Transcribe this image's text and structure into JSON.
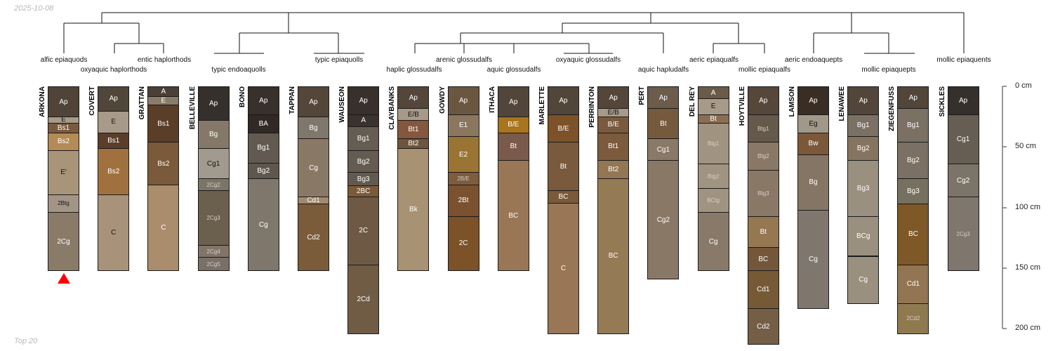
{
  "date": "2025-10-08",
  "footer": "Top 20",
  "axis": {
    "unit": "cm",
    "ticks": [
      "0 cm",
      "50 cm",
      "100 cm",
      "150 cm",
      "200 cm"
    ],
    "tick_values": [
      0,
      50,
      100,
      150,
      200
    ],
    "max_depth": 200
  },
  "taxa": [
    {
      "label": "alfic epiaquods",
      "row": 1
    },
    {
      "label": "oxyaquic haplorthods",
      "row": 2
    },
    {
      "label": "entic haplorthods",
      "row": 1
    },
    {
      "label": "typic endoaquolls",
      "row": 2
    },
    {
      "label": "typic epiaquolls",
      "row": 1
    },
    {
      "label": "haplic glossudalfs",
      "row": 2
    },
    {
      "label": "arenic glossudalfs",
      "row": 1
    },
    {
      "label": "aquic glossudalfs",
      "row": 2
    },
    {
      "label": "oxyaquic glossudalfs",
      "row": 1
    },
    {
      "label": "aquic hapludalfs",
      "row": 2
    },
    {
      "label": "aeric epiaqualfs",
      "row": 1
    },
    {
      "label": "mollic epiaqualfs",
      "row": 2
    },
    {
      "label": "aeric endoaquepts",
      "row": 1
    },
    {
      "label": "mollic epiaquepts",
      "row": 2
    },
    {
      "label": "mollic epiaquents",
      "row": 1
    }
  ],
  "marked_profile": "ARKONA",
  "marker_color": "#ff0000",
  "profiles": [
    {
      "name": "ARKONA",
      "horizons": [
        {
          "name": "Ap",
          "top": 0,
          "bottom": 25,
          "color": "#4f4437"
        },
        {
          "name": "E",
          "top": 25,
          "bottom": 30,
          "color": "#a89a88"
        },
        {
          "name": "Bs1",
          "top": 30,
          "bottom": 38,
          "color": "#7a5a3e"
        },
        {
          "name": "Bs2",
          "top": 38,
          "bottom": 53,
          "color": "#b48a55"
        },
        {
          "name": "E'",
          "top": 53,
          "bottom": 89,
          "color": "#a89478"
        },
        {
          "name": "2Btg",
          "top": 89,
          "bottom": 104,
          "color": "#a39585"
        },
        {
          "name": "2Cg",
          "top": 104,
          "bottom": 152,
          "color": "#8a7b69"
        }
      ]
    },
    {
      "name": "COVERT",
      "horizons": [
        {
          "name": "Ap",
          "top": 0,
          "bottom": 20,
          "color": "#51463a"
        },
        {
          "name": "E",
          "top": 20,
          "bottom": 38,
          "color": "#a89a88"
        },
        {
          "name": "Bs1",
          "top": 38,
          "bottom": 51,
          "color": "#5c3d2b"
        },
        {
          "name": "Bs2",
          "top": 51,
          "bottom": 89,
          "color": "#a0713f"
        },
        {
          "name": "C",
          "top": 89,
          "bottom": 152,
          "color": "#a8937a"
        }
      ]
    },
    {
      "name": "GRATTAN",
      "horizons": [
        {
          "name": "A",
          "top": 0,
          "bottom": 8,
          "color": "#4a4038"
        },
        {
          "name": "E",
          "top": 8,
          "bottom": 15,
          "color": "#8b7b69"
        },
        {
          "name": "Bs1",
          "top": 15,
          "bottom": 46,
          "color": "#5a3e28"
        },
        {
          "name": "Bs2",
          "top": 46,
          "bottom": 81,
          "color": "#7a5a3a"
        },
        {
          "name": "C",
          "top": 81,
          "bottom": 152,
          "color": "#a98d6d"
        }
      ]
    },
    {
      "name": "BELLEVILLE",
      "horizons": [
        {
          "name": "Ap",
          "top": 0,
          "bottom": 28,
          "color": "#35302b"
        },
        {
          "name": "Bg",
          "top": 28,
          "bottom": 51,
          "color": "#857868"
        },
        {
          "name": "Cg1",
          "top": 51,
          "bottom": 76,
          "color": "#a29a8f"
        },
        {
          "name": "2Cg2",
          "top": 76,
          "bottom": 86,
          "color": "#7b7568"
        },
        {
          "name": "2Cg3",
          "top": 86,
          "bottom": 131,
          "color": "#6b5f4e"
        },
        {
          "name": "2Cg4",
          "top": 131,
          "bottom": 141,
          "color": "#807568"
        },
        {
          "name": "2Cg5",
          "top": 141,
          "bottom": 152,
          "color": "#7a7068"
        }
      ]
    },
    {
      "name": "BONO",
      "horizons": [
        {
          "name": "Ap",
          "top": 0,
          "bottom": 23,
          "color": "#38302a"
        },
        {
          "name": "BA",
          "top": 23,
          "bottom": 38,
          "color": "#302925"
        },
        {
          "name": "Bg1",
          "top": 38,
          "bottom": 63,
          "color": "#625a50"
        },
        {
          "name": "Bg2",
          "top": 63,
          "bottom": 76,
          "color": "#5f574d"
        },
        {
          "name": "Cg",
          "top": 76,
          "bottom": 152,
          "color": "#7f776c"
        }
      ]
    },
    {
      "name": "TAPPAN",
      "horizons": [
        {
          "name": "Ap",
          "top": 0,
          "bottom": 25,
          "color": "#55463a"
        },
        {
          "name": "Bg",
          "top": 25,
          "bottom": 43,
          "color": "#7f776c"
        },
        {
          "name": "Cg",
          "top": 43,
          "bottom": 91,
          "color": "#8a7866"
        },
        {
          "name": "Cd1",
          "top": 91,
          "bottom": 97,
          "color": "#a08a70"
        },
        {
          "name": "Cd2",
          "top": 97,
          "bottom": 152,
          "color": "#7a5c3a"
        }
      ]
    },
    {
      "name": "WAUSEON",
      "horizons": [
        {
          "name": "Ap",
          "top": 0,
          "bottom": 23,
          "color": "#38302a"
        },
        {
          "name": "A",
          "top": 23,
          "bottom": 33,
          "color": "#3a322c"
        },
        {
          "name": "Bg1",
          "top": 33,
          "bottom": 53,
          "color": "#655c52"
        },
        {
          "name": "Bg2",
          "top": 53,
          "bottom": 71,
          "color": "#645b51"
        },
        {
          "name": "Bg3",
          "top": 71,
          "bottom": 82,
          "color": "#625a50"
        },
        {
          "name": "2BC",
          "top": 82,
          "bottom": 91,
          "color": "#7a5a38"
        },
        {
          "name": "2C",
          "top": 91,
          "bottom": 147,
          "color": "#6e5a44"
        },
        {
          "name": "2Cd",
          "top": 147,
          "bottom": 204,
          "color": "#705c44"
        }
      ]
    },
    {
      "name": "CLAYBANKS",
      "horizons": [
        {
          "name": "Ap",
          "top": 0,
          "bottom": 18,
          "color": "#55463a"
        },
        {
          "name": "E/B",
          "top": 18,
          "bottom": 28,
          "color": "#a89a88"
        },
        {
          "name": "Bt1",
          "top": 28,
          "bottom": 43,
          "color": "#85573e"
        },
        {
          "name": "Bt2",
          "top": 43,
          "bottom": 51,
          "color": "#6e553d"
        },
        {
          "name": "Bk",
          "top": 51,
          "bottom": 152,
          "color": "#a89274"
        }
      ]
    },
    {
      "name": "GOWDY",
      "horizons": [
        {
          "name": "Ap",
          "top": 0,
          "bottom": 23,
          "color": "#6b5740"
        },
        {
          "name": "E1",
          "top": 23,
          "bottom": 41,
          "color": "#8b7760"
        },
        {
          "name": "E2",
          "top": 41,
          "bottom": 71,
          "color": "#9a7433"
        },
        {
          "name": "2B/E",
          "top": 71,
          "bottom": 81,
          "color": "#7e5c3e"
        },
        {
          "name": "2Bt",
          "top": 81,
          "bottom": 107,
          "color": "#7a5230"
        },
        {
          "name": "2C",
          "top": 107,
          "bottom": 152,
          "color": "#7c5228"
        }
      ]
    },
    {
      "name": "ITHACA",
      "horizons": [
        {
          "name": "Ap",
          "top": 0,
          "bottom": 25,
          "color": "#52463a"
        },
        {
          "name": "B/E",
          "top": 25,
          "bottom": 38,
          "color": "#a8741e"
        },
        {
          "name": "Bt",
          "top": 38,
          "bottom": 61,
          "color": "#7a5a4a"
        },
        {
          "name": "BC",
          "top": 61,
          "bottom": 152,
          "color": "#997656"
        }
      ]
    },
    {
      "name": "MARLETTE",
      "horizons": [
        {
          "name": "Ap",
          "top": 0,
          "bottom": 23,
          "color": "#52463a"
        },
        {
          "name": "B/E",
          "top": 23,
          "bottom": 46,
          "color": "#7e5228"
        },
        {
          "name": "Bt",
          "top": 46,
          "bottom": 86,
          "color": "#7a5a3c"
        },
        {
          "name": "BC",
          "top": 86,
          "bottom": 96,
          "color": "#7a5a3a"
        },
        {
          "name": "C",
          "top": 96,
          "bottom": 204,
          "color": "#997656"
        }
      ]
    },
    {
      "name": "PERRINTON",
      "horizons": [
        {
          "name": "Ap",
          "top": 0,
          "bottom": 18,
          "color": "#55463a"
        },
        {
          "name": "E/B",
          "top": 18,
          "bottom": 25,
          "color": "#a89a88"
        },
        {
          "name": "B/E",
          "top": 25,
          "bottom": 38,
          "color": "#7a5a3e"
        },
        {
          "name": "Bt1",
          "top": 38,
          "bottom": 61,
          "color": "#7c5a3e"
        },
        {
          "name": "Bt2",
          "top": 61,
          "bottom": 76,
          "color": "#937654"
        },
        {
          "name": "BC",
          "top": 76,
          "bottom": 204,
          "color": "#957a56"
        }
      ]
    },
    {
      "name": "PERT",
      "horizons": [
        {
          "name": "Ap",
          "top": 0,
          "bottom": 18,
          "color": "#6b5c4c"
        },
        {
          "name": "Bt",
          "top": 18,
          "bottom": 43,
          "color": "#755a3e"
        },
        {
          "name": "Cg1",
          "top": 43,
          "bottom": 61,
          "color": "#897968"
        },
        {
          "name": "Cg2",
          "top": 61,
          "bottom": 159,
          "color": "#8a7866"
        }
      ]
    },
    {
      "name": "DEL REY",
      "horizons": [
        {
          "name": "A",
          "top": 0,
          "bottom": 10,
          "color": "#6b5a48"
        },
        {
          "name": "E",
          "top": 10,
          "bottom": 23,
          "color": "#a89a88"
        },
        {
          "name": "Bt",
          "top": 23,
          "bottom": 30,
          "color": "#8b6e52"
        },
        {
          "name": "Btg1",
          "top": 30,
          "bottom": 64,
          "color": "#a09480"
        },
        {
          "name": "Btg2",
          "top": 64,
          "bottom": 84,
          "color": "#a09480"
        },
        {
          "name": "BCtg",
          "top": 84,
          "bottom": 104,
          "color": "#a09480"
        },
        {
          "name": "Cg",
          "top": 104,
          "bottom": 152,
          "color": "#897968"
        }
      ]
    },
    {
      "name": "HOYTVILLE",
      "horizons": [
        {
          "name": "Ap",
          "top": 0,
          "bottom": 23,
          "color": "#55473a"
        },
        {
          "name": "Btg1",
          "top": 23,
          "bottom": 46,
          "color": "#65594b"
        },
        {
          "name": "Btg2",
          "top": 46,
          "bottom": 69,
          "color": "#8a7866"
        },
        {
          "name": "Btg3",
          "top": 69,
          "bottom": 107,
          "color": "#8a7866"
        },
        {
          "name": "Bt",
          "top": 107,
          "bottom": 133,
          "color": "#957752"
        },
        {
          "name": "BC",
          "top": 133,
          "bottom": 152,
          "color": "#74573a"
        },
        {
          "name": "Cd1",
          "top": 152,
          "bottom": 183,
          "color": "#765a36"
        },
        {
          "name": "Cd2",
          "top": 183,
          "bottom": 213,
          "color": "#745e46"
        }
      ]
    },
    {
      "name": "LAMSON",
      "horizons": [
        {
          "name": "Ap",
          "top": 0,
          "bottom": 23,
          "color": "#3a2e24"
        },
        {
          "name": "Eg",
          "top": 23,
          "bottom": 38,
          "color": "#a09888"
        },
        {
          "name": "Bw",
          "top": 38,
          "bottom": 56,
          "color": "#7c583a"
        },
        {
          "name": "Bg",
          "top": 56,
          "bottom": 102,
          "color": "#857564"
        },
        {
          "name": "Cg",
          "top": 102,
          "bottom": 183,
          "color": "#7f776e"
        }
      ]
    },
    {
      "name": "LENAWEE",
      "horizons": [
        {
          "name": "Ap",
          "top": 0,
          "bottom": 23,
          "color": "#52463a"
        },
        {
          "name": "Bg1",
          "top": 23,
          "bottom": 41,
          "color": "#7a7064"
        },
        {
          "name": "Bg2",
          "top": 41,
          "bottom": 61,
          "color": "#85745f"
        },
        {
          "name": "Bg3",
          "top": 61,
          "bottom": 107,
          "color": "#9a9080"
        },
        {
          "name": "BCg",
          "top": 107,
          "bottom": 140,
          "color": "#9a9080"
        },
        {
          "name": "Cg",
          "top": 140,
          "bottom": 179,
          "color": "#9a9080"
        }
      ]
    },
    {
      "name": "ZIEGENFUSS",
      "horizons": [
        {
          "name": "Ap",
          "top": 0,
          "bottom": 18,
          "color": "#52463a"
        },
        {
          "name": "Bg1",
          "top": 18,
          "bottom": 46,
          "color": "#7a7064"
        },
        {
          "name": "Bg2",
          "top": 46,
          "bottom": 76,
          "color": "#7a7064"
        },
        {
          "name": "Bg3",
          "top": 76,
          "bottom": 97,
          "color": "#767060"
        },
        {
          "name": "BC",
          "top": 97,
          "bottom": 147,
          "color": "#7e5826"
        },
        {
          "name": "Cd1",
          "top": 147,
          "bottom": 179,
          "color": "#927552"
        },
        {
          "name": "2Cd2",
          "top": 179,
          "bottom": 204,
          "color": "#8f7a50"
        }
      ]
    },
    {
      "name": "SICKLES",
      "horizons": [
        {
          "name": "Ap",
          "top": 0,
          "bottom": 23,
          "color": "#35302b"
        },
        {
          "name": "Cg1",
          "top": 23,
          "bottom": 64,
          "color": "#665e52"
        },
        {
          "name": "Cg2",
          "top": 64,
          "bottom": 91,
          "color": "#7c7468"
        },
        {
          "name": "2Cg3",
          "top": 91,
          "bottom": 152,
          "color": "#7f776e"
        }
      ]
    }
  ]
}
